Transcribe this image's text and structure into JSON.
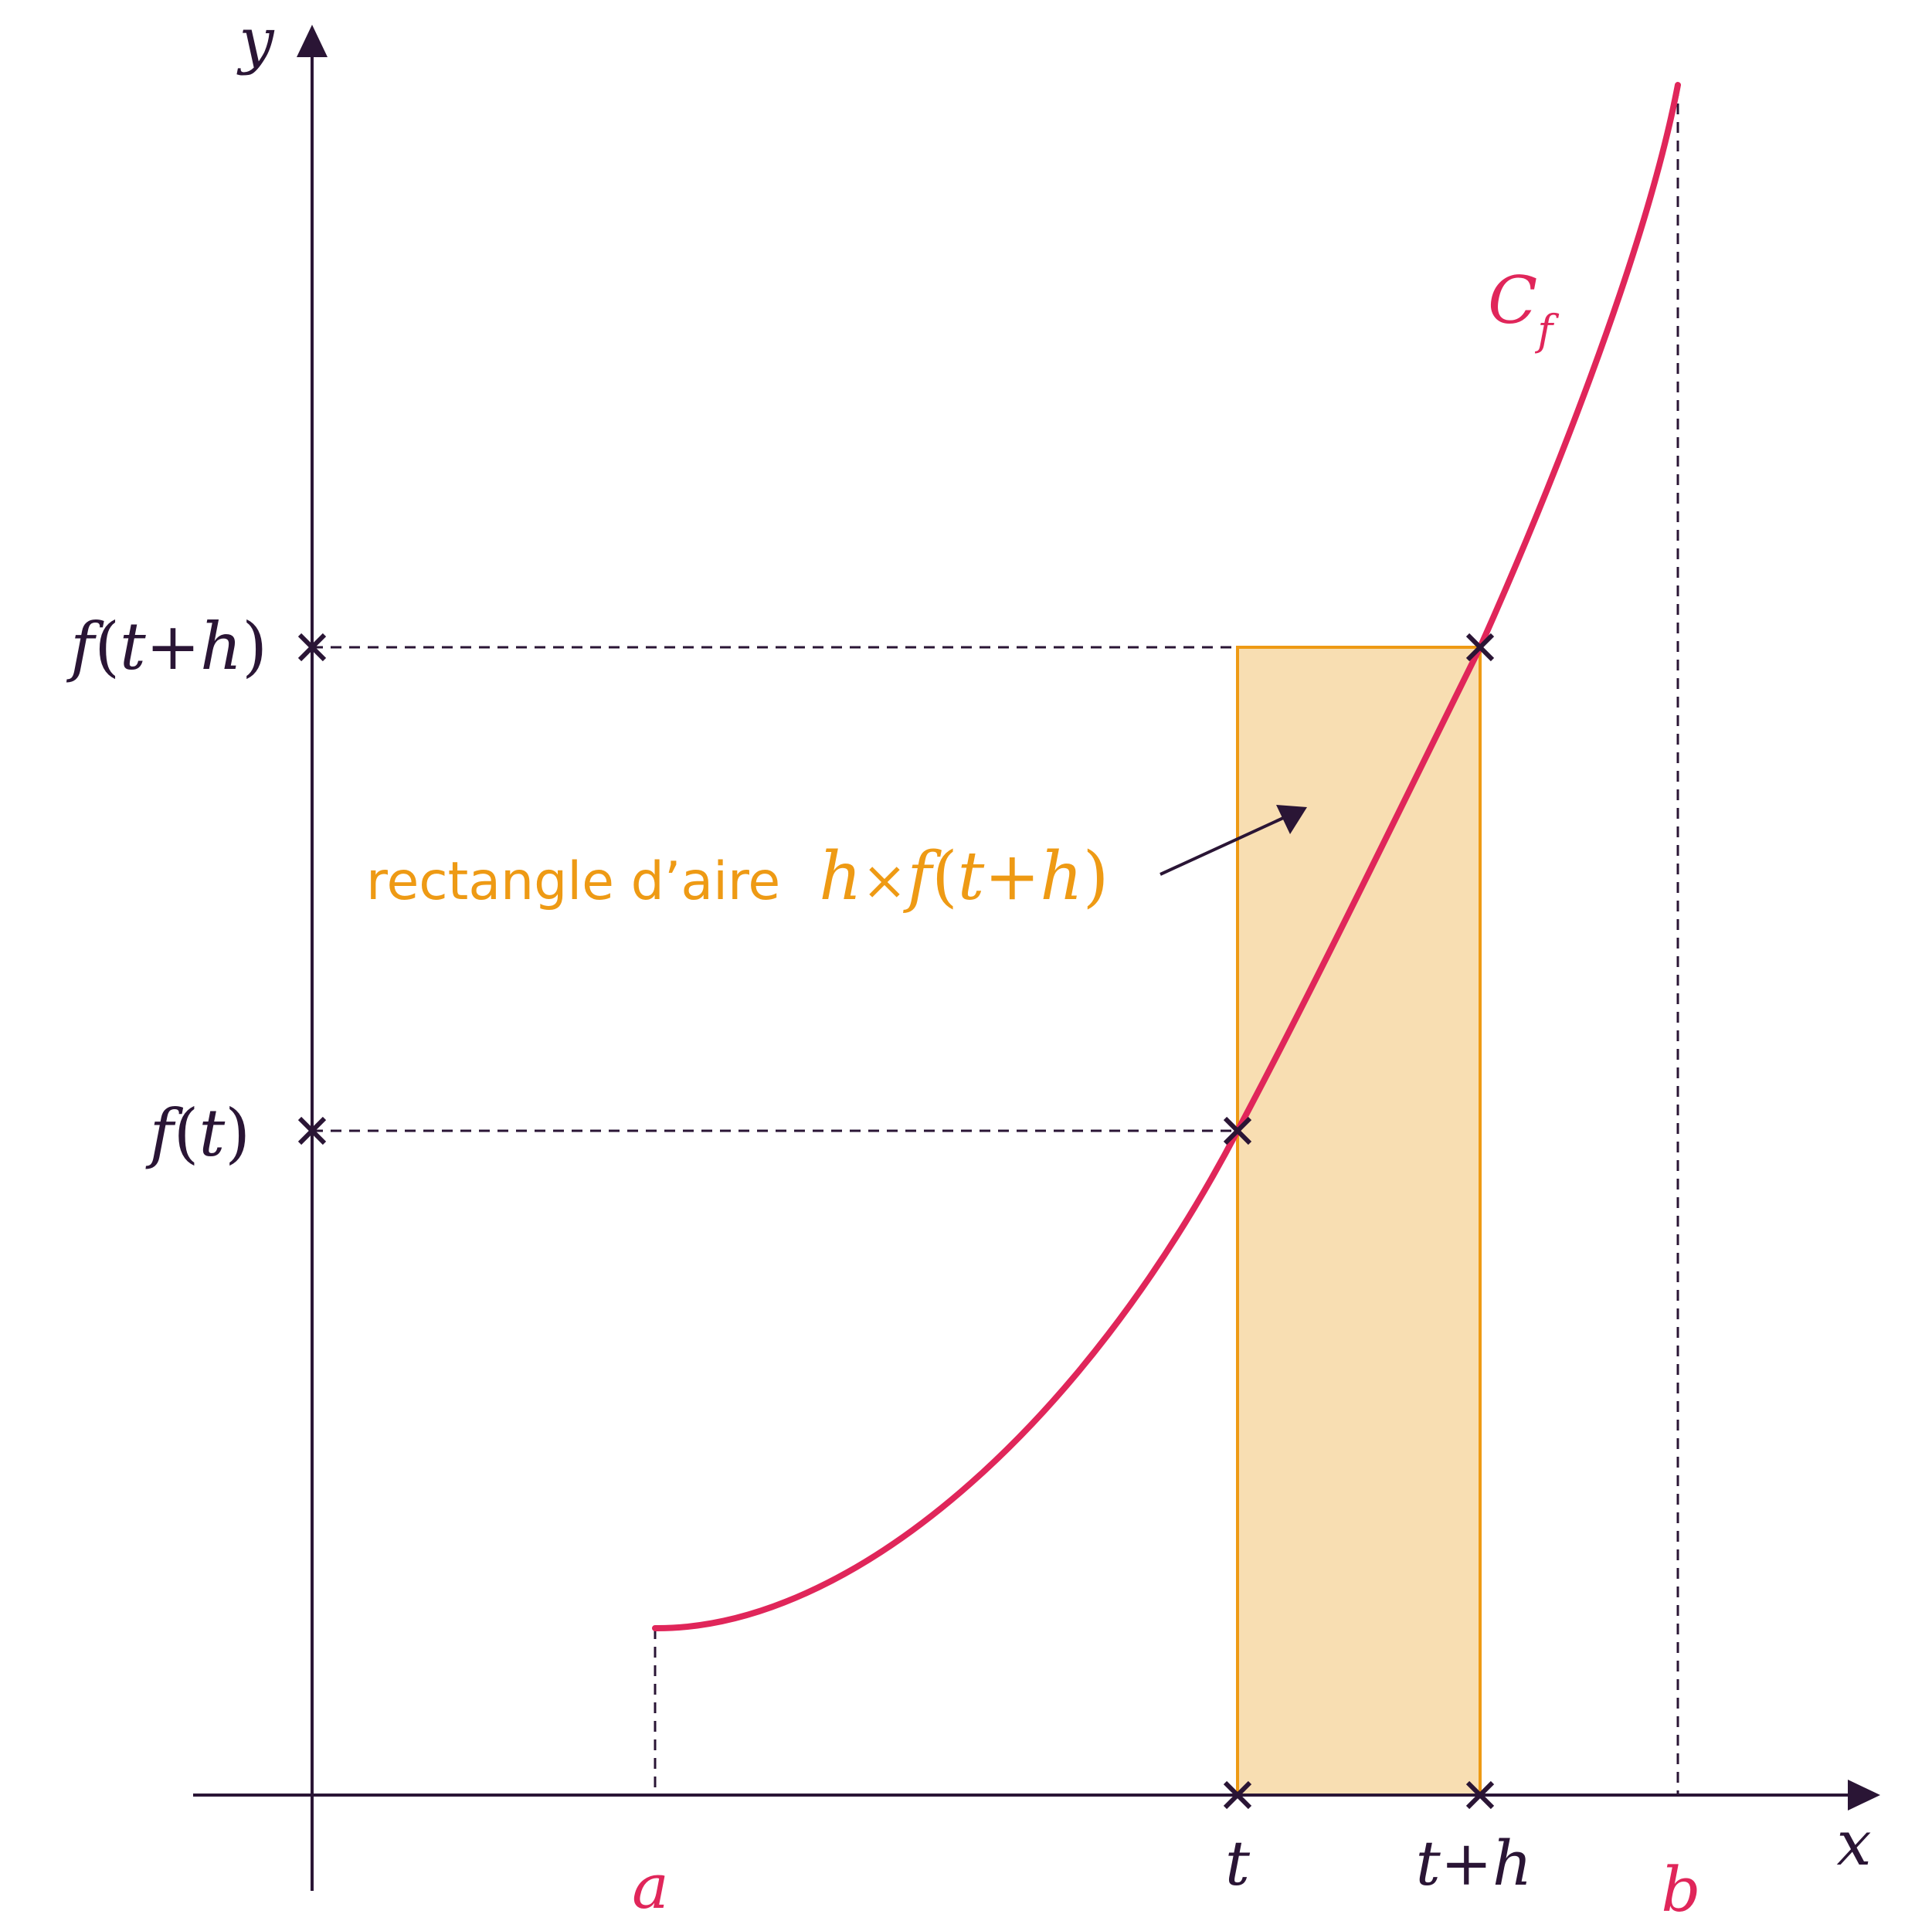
{
  "colors": {
    "axis": "#2a1535",
    "curve": "#e0265a",
    "rect_fill": "#f8deb2",
    "rect_stroke": "#ee9a14",
    "annotation": "#ee9a14"
  },
  "axes": {
    "x_label": "x",
    "y_label": "y"
  },
  "x_ticks": {
    "a": "a",
    "t": "t",
    "t_plus_h": "t+h",
    "b": "b"
  },
  "y_ticks": {
    "f_of_t_plus_h": {
      "f": "f",
      "open": "(",
      "arg": "t+h",
      "close": ")"
    },
    "f_of_t": {
      "f": "f",
      "open": "(",
      "arg": "t",
      "close": ")"
    }
  },
  "curve": {
    "label_main": "C",
    "label_sub": "f"
  },
  "annotation": {
    "text": "rectangle d’aire",
    "h": "h",
    "times": "×",
    "f": "f",
    "open": "(",
    "arg": "t+h",
    "close": ")"
  }
}
